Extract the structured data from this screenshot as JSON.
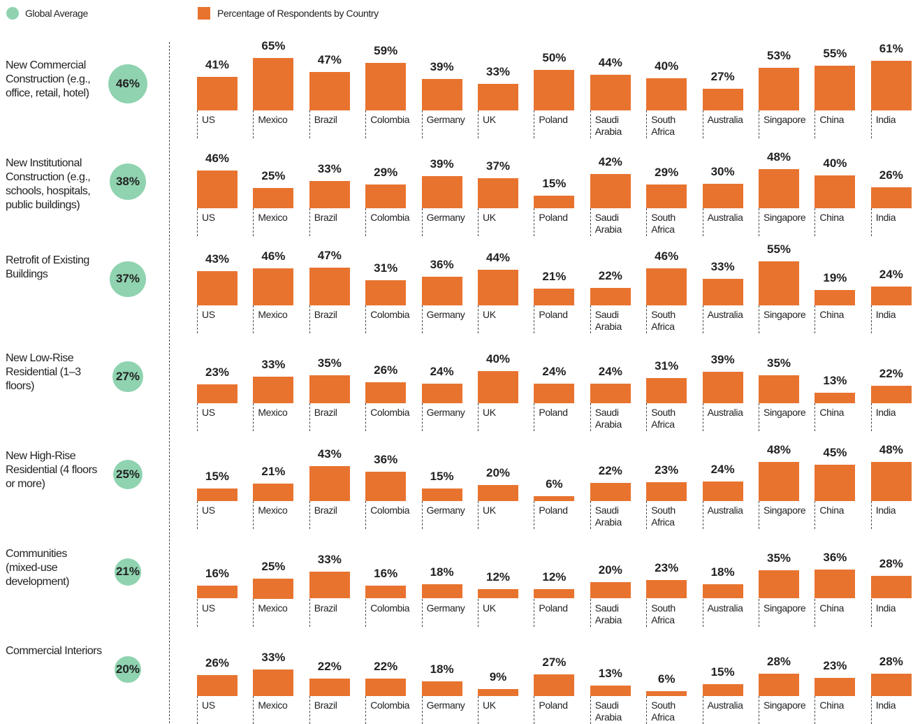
{
  "chart_data": {
    "type": "bar",
    "legend": [
      {
        "name": "Global Average",
        "color": "#8fd3b0"
      },
      {
        "name": "Percentage of Respondents by Country",
        "color": "#e8732f"
      }
    ],
    "color": "#e8732f",
    "average_color": "#8fd3b0",
    "categories": [
      "US",
      "Mexico",
      "Brazil",
      "Colombia",
      "Germany",
      "UK",
      "Poland",
      "Saudi Arabia",
      "South Africa",
      "Australia",
      "Singapore",
      "China",
      "India"
    ],
    "series": [
      {
        "name": "New Commercial Construction (e.g., office, retail, hotel)",
        "average": 46,
        "average_label": "46%",
        "values": [
          41,
          65,
          47,
          59,
          39,
          33,
          50,
          44,
          40,
          27,
          53,
          55,
          61
        ],
        "value_labels": [
          "41%",
          "65%",
          "47%",
          "59%",
          "39%",
          "33%",
          "50%",
          "44%",
          "40%",
          "27%",
          "53%",
          "55%",
          "61%"
        ]
      },
      {
        "name": "New Institutional Construction (e.g., schools, hospitals, public buildings)",
        "average": 38,
        "average_label": "38%",
        "values": [
          46,
          25,
          33,
          29,
          39,
          37,
          15,
          42,
          29,
          30,
          48,
          40,
          26
        ],
        "value_labels": [
          "46%",
          "25%",
          "33%",
          "29%",
          "39%",
          "37%",
          "15%",
          "42%",
          "29%",
          "30%",
          "48%",
          "40%",
          "26%"
        ]
      },
      {
        "name": "Retrofit of Existing Buildings",
        "average": 37,
        "average_label": "37%",
        "values": [
          43,
          46,
          47,
          31,
          36,
          44,
          21,
          22,
          46,
          33,
          55,
          19,
          24
        ],
        "value_labels": [
          "43%",
          "46%",
          "47%",
          "31%",
          "36%",
          "44%",
          "21%",
          "22%",
          "46%",
          "33%",
          "55%",
          "19%",
          "24%"
        ]
      },
      {
        "name": "New Low-Rise Residential (1–3 floors)",
        "average": 27,
        "average_label": "27%",
        "values": [
          23,
          33,
          35,
          26,
          24,
          40,
          24,
          24,
          31,
          39,
          35,
          13,
          22
        ],
        "value_labels": [
          "23%",
          "33%",
          "35%",
          "26%",
          "24%",
          "40%",
          "24%",
          "24%",
          "31%",
          "39%",
          "35%",
          "13%",
          "22%"
        ]
      },
      {
        "name": "New High-Rise Residential (4 floors or more)",
        "average": 25,
        "average_label": "25%",
        "values": [
          15,
          21,
          43,
          36,
          15,
          20,
          6,
          22,
          23,
          24,
          48,
          45,
          48
        ],
        "value_labels": [
          "15%",
          "21%",
          "43%",
          "36%",
          "15%",
          "20%",
          "6%",
          "22%",
          "23%",
          "24%",
          "48%",
          "45%",
          "48%"
        ]
      },
      {
        "name": "Communities (mixed-use development)",
        "average": 21,
        "average_label": "21%",
        "values": [
          16,
          25,
          33,
          16,
          18,
          12,
          12,
          20,
          23,
          18,
          35,
          36,
          28
        ],
        "value_labels": [
          "16%",
          "25%",
          "33%",
          "16%",
          "18%",
          "12%",
          "12%",
          "20%",
          "23%",
          "18%",
          "35%",
          "36%",
          "28%"
        ]
      },
      {
        "name": "Commercial Interiors",
        "average": 20,
        "average_label": "20%",
        "values": [
          26,
          33,
          22,
          22,
          18,
          9,
          27,
          13,
          6,
          15,
          28,
          23,
          28
        ],
        "value_labels": [
          "26%",
          "33%",
          "22%",
          "22%",
          "18%",
          "9%",
          "27%",
          "13%",
          "6%",
          "15%",
          "28%",
          "23%",
          "28%"
        ]
      }
    ]
  }
}
